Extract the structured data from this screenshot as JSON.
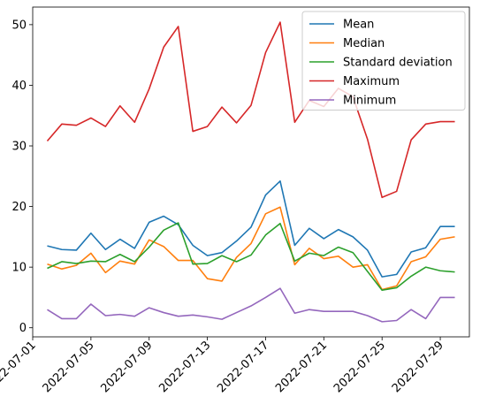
{
  "chart_data": {
    "type": "line",
    "x": [
      "2022-07-02",
      "2022-07-03",
      "2022-07-04",
      "2022-07-05",
      "2022-07-06",
      "2022-07-07",
      "2022-07-08",
      "2022-07-09",
      "2022-07-10",
      "2022-07-11",
      "2022-07-12",
      "2022-07-13",
      "2022-07-14",
      "2022-07-15",
      "2022-07-16",
      "2022-07-17",
      "2022-07-18",
      "2022-07-19",
      "2022-07-20",
      "2022-07-21",
      "2022-07-22",
      "2022-07-23",
      "2022-07-24",
      "2022-07-25",
      "2022-07-26",
      "2022-07-27",
      "2022-07-28",
      "2022-07-29",
      "2022-07-30"
    ],
    "series": [
      {
        "name": "Mean",
        "color": "#1f77b4",
        "values": [
          13.5,
          12.9,
          12.8,
          15.6,
          12.9,
          14.6,
          13.1,
          17.4,
          18.4,
          17.0,
          13.6,
          11.9,
          12.4,
          14.3,
          16.6,
          21.9,
          24.2,
          13.6,
          16.4,
          14.7,
          16.2,
          15.0,
          12.8,
          8.4,
          8.8,
          12.5,
          13.2,
          16.7,
          16.7
        ]
      },
      {
        "name": "Median",
        "color": "#ff7f0e",
        "values": [
          10.5,
          9.7,
          10.3,
          12.3,
          9.1,
          11.0,
          10.5,
          14.5,
          13.4,
          11.1,
          11.1,
          8.1,
          7.7,
          11.6,
          13.9,
          18.8,
          19.9,
          10.4,
          13.1,
          11.4,
          11.8,
          10.0,
          10.4,
          6.3,
          6.9,
          10.9,
          11.7,
          14.6,
          15.0
        ]
      },
      {
        "name": "Standard deviation",
        "color": "#2ca02c",
        "values": [
          9.8,
          10.9,
          10.6,
          11.0,
          10.9,
          12.1,
          10.9,
          13.3,
          16.1,
          17.3,
          10.5,
          10.6,
          11.9,
          10.9,
          12.0,
          15.3,
          17.2,
          11.0,
          12.3,
          11.9,
          13.3,
          12.4,
          9.3,
          6.2,
          6.6,
          8.5,
          10.0,
          9.4,
          9.2
        ]
      },
      {
        "name": "Maximum",
        "color": "#d62728",
        "values": [
          30.8,
          33.6,
          33.4,
          34.6,
          33.2,
          36.6,
          33.9,
          39.4,
          46.3,
          49.7,
          32.4,
          33.2,
          36.4,
          33.8,
          36.7,
          45.4,
          50.4,
          33.9,
          37.5,
          36.5,
          39.5,
          38.1,
          31.1,
          21.5,
          22.5,
          31.0,
          33.6,
          34.0,
          34.0
        ]
      },
      {
        "name": "Minimum",
        "color": "#9467bd",
        "values": [
          3.0,
          1.5,
          1.5,
          3.9,
          2.0,
          2.2,
          1.9,
          3.3,
          2.5,
          1.9,
          2.1,
          1.8,
          1.4,
          2.5,
          3.6,
          5.0,
          6.5,
          2.4,
          3.0,
          2.7,
          2.7,
          2.7,
          2.0,
          1.0,
          1.2,
          3.0,
          1.5,
          5.0,
          5.0
        ]
      }
    ],
    "x_ticks": [
      "2022-07-01",
      "2022-07-05",
      "2022-07-09",
      "2022-07-13",
      "2022-07-17",
      "2022-07-21",
      "2022-07-25",
      "2022-07-29"
    ],
    "y_ticks": [
      0,
      10,
      20,
      30,
      40,
      50
    ],
    "xlim": [
      "2022-07-01",
      "2022-07-31"
    ],
    "ylim": [
      -1.5,
      52.9
    ],
    "title": "",
    "xlabel": "",
    "ylabel": "",
    "legend": "top-right",
    "grid": false
  }
}
